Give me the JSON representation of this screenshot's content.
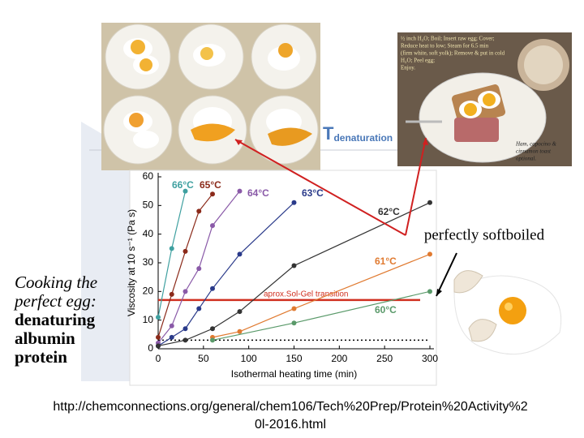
{
  "slide": {
    "caption_italic": [
      "Cooking the",
      "perfect egg:"
    ],
    "caption_bold": [
      "denaturing",
      "albumin",
      "protein"
    ],
    "label_softboiled": "perfectly softboiled",
    "t_label": "T",
    "t_subscript": "denaturation",
    "recipe": [
      "½ inch H₂O; Boil; Insert raw egg; Cover;",
      "Reduce heat to low; Steam for 6.5 min",
      "(firm white, soft yolk); Remove & put in cold",
      "H₂O; Peel egg;",
      "Enjoy."
    ],
    "side_note": [
      "Ham, capocino &",
      "cinnamon toast",
      "optional."
    ],
    "url": [
      "http://chemconnections.org/general/chem106/Tech%20Prep/Protein%20Activity%2",
      "0l-2016.html"
    ]
  },
  "chart_data": {
    "type": "line",
    "x_label": "Isothermal heating time (min)",
    "y_label": "Viscosity at 10 s⁻¹ (Pa s)",
    "xlim": [
      0,
      300
    ],
    "ylim": [
      0,
      60
    ],
    "xticks": [
      0,
      50,
      100,
      150,
      200,
      250,
      300
    ],
    "yticks": [
      0,
      10,
      20,
      30,
      40,
      50,
      60
    ],
    "series": [
      {
        "name": "66°C",
        "color": "#3fa0a0",
        "x": [
          0,
          15,
          30
        ],
        "values": [
          11,
          35,
          55
        ]
      },
      {
        "name": "65°C",
        "color": "#8b2a1a",
        "x": [
          0,
          15,
          30,
          45,
          60
        ],
        "values": [
          4,
          19,
          34,
          48,
          54
        ]
      },
      {
        "name": "64°C",
        "color": "#8a5aa8",
        "x": [
          0,
          15,
          30,
          45,
          60,
          90
        ],
        "values": [
          2,
          8,
          20,
          28,
          43,
          55
        ]
      },
      {
        "name": "63°C",
        "color": "#2a3a8a",
        "x": [
          0,
          15,
          30,
          45,
          60,
          90,
          150
        ],
        "values": [
          1,
          4,
          7,
          14,
          21,
          33,
          51
        ]
      },
      {
        "name": "62°C",
        "color": "#333333",
        "x": [
          0,
          30,
          60,
          90,
          150,
          300
        ],
        "values": [
          1,
          3,
          7,
          13,
          29,
          51
        ]
      },
      {
        "name": "61°C",
        "color": "#e07a30",
        "x": [
          60,
          90,
          150,
          300
        ],
        "values": [
          4,
          6,
          14,
          33
        ]
      },
      {
        "name": "60°C",
        "color": "#5a9a6a",
        "x": [
          60,
          150,
          300
        ],
        "values": [
          3,
          9,
          20
        ]
      }
    ],
    "reference_lines": [
      {
        "value": 17,
        "label": "aprox.Sol-Gel transition",
        "color": "#d03020"
      },
      {
        "value": 3,
        "color": "#000000"
      }
    ]
  }
}
